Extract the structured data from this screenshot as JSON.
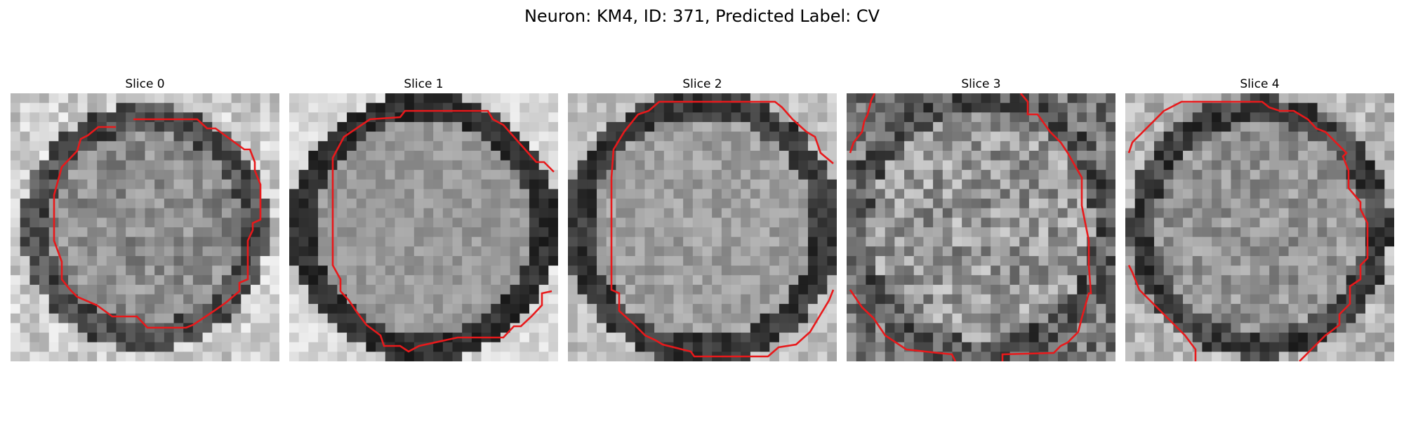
{
  "figure": {
    "title": "Neuron: KM4, ID: 371, Predicted Label: CV"
  },
  "panels": [
    {
      "title": "Slice 0"
    },
    {
      "title": "Slice 1"
    },
    {
      "title": "Slice 2"
    },
    {
      "title": "Slice 3"
    },
    {
      "title": "Slice 4"
    }
  ],
  "colors": {
    "contour": "#e8191b",
    "background": "#ffffff",
    "text": "#000000"
  }
}
